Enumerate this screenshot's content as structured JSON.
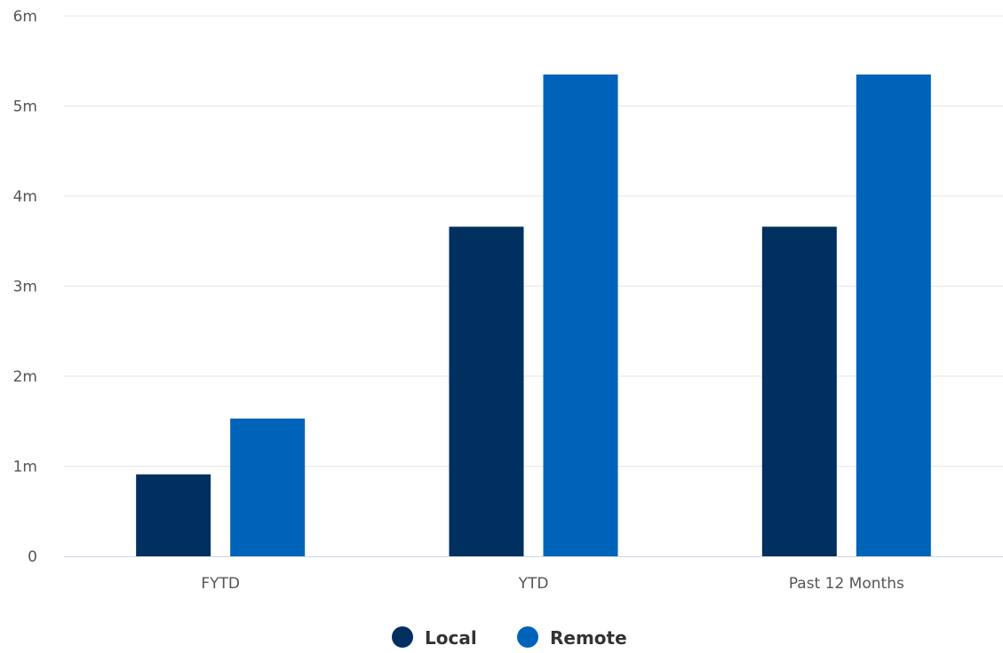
{
  "chart_data": {
    "type": "bar",
    "categories": [
      "FYTD",
      "YTD",
      "Past 12 Months"
    ],
    "series": [
      {
        "name": "Local",
        "values": [
          0.91,
          3.66,
          3.66
        ],
        "color": "#00305f"
      },
      {
        "name": "Remote",
        "values": [
          1.53,
          5.35,
          5.35
        ],
        "color": "#0063ba"
      }
    ],
    "ylim": [
      0,
      6
    ],
    "yticks": [
      {
        "value": 0,
        "label": "0"
      },
      {
        "value": 1,
        "label": "1m"
      },
      {
        "value": 2,
        "label": "2m"
      },
      {
        "value": 3,
        "label": "3m"
      },
      {
        "value": 4,
        "label": "4m"
      },
      {
        "value": 5,
        "label": "5m"
      },
      {
        "value": 6,
        "label": "6m"
      }
    ],
    "grid": true,
    "legend_position": "bottom-center",
    "gridline_color": "#e6e6e6",
    "axis_line_color": "#ccd6eb"
  }
}
